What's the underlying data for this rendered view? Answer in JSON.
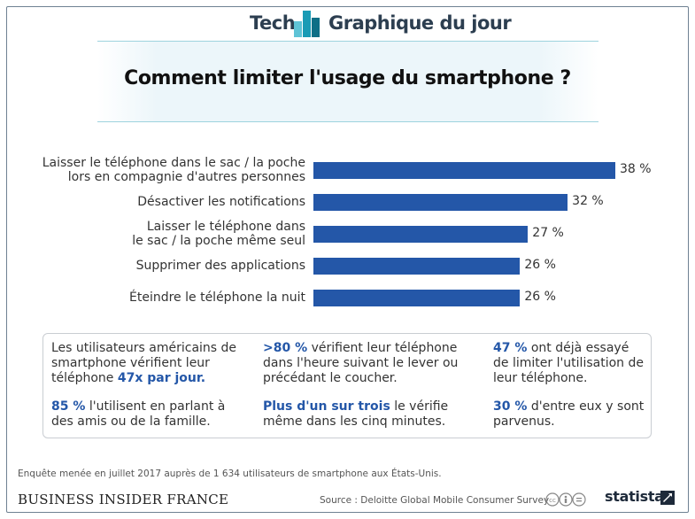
{
  "header": {
    "left_label": "Tech",
    "right_label": "Graphique du jour",
    "logo_icon": "bar-logo-icon",
    "accent_color": "#1a9bb5"
  },
  "title": "Comment limiter l'usage du smartphone ?",
  "chart_data": {
    "type": "bar",
    "orientation": "horizontal",
    "title": "Comment limiter l'usage du smartphone ?",
    "categories": [
      [
        "Laisser le téléphone dans le sac / la poche",
        "lors en compagnie d'autres personnes"
      ],
      [
        "Désactiver les notifications"
      ],
      [
        "Laisser le téléphone dans",
        "le sac / la poche même seul"
      ],
      [
        "Supprimer des applications"
      ],
      [
        "Éteindre le téléphone la nuit"
      ]
    ],
    "values": [
      38,
      32,
      27,
      26,
      26
    ],
    "value_labels": [
      "38 %",
      "32 %",
      "27 %",
      "26 %",
      "26 %"
    ],
    "unit": "%",
    "bar_color": "#2457a8",
    "xlim": [
      0,
      38
    ],
    "grid": false,
    "legend": "none"
  },
  "facts": [
    {
      "segments": [
        {
          "text": "Les utilisateurs américains de smartphone vérifient leur téléphone ",
          "hl": false
        },
        {
          "text": "47x par jour.",
          "hl": true
        }
      ]
    },
    {
      "segments": [
        {
          "text": ">80 %",
          "hl": true
        },
        {
          "text": " vérifient leur téléphone dans l'heure suivant le lever ou précédant le coucher.",
          "hl": false
        }
      ]
    },
    {
      "segments": [
        {
          "text": "47 %",
          "hl": true
        },
        {
          "text": " ont déjà essayé de limiter l'utilisation de leur téléphone.",
          "hl": false
        }
      ]
    },
    {
      "segments": [
        {
          "text": "85 %",
          "hl": true
        },
        {
          "text": " l'utilisent en parlant à des amis ou de la famille.",
          "hl": false
        }
      ]
    },
    {
      "segments": [
        {
          "text": "Plus d'un sur trois",
          "hl": true
        },
        {
          "text": " le vérifie même dans les cinq minutes.",
          "hl": false
        }
      ]
    },
    {
      "segments": [
        {
          "text": "30 %",
          "hl": true
        },
        {
          "text": " d'entre eux y sont parvenus.",
          "hl": false
        }
      ]
    }
  ],
  "footer": {
    "note": "Enquête menée en juillet 2017 auprès de 1 634 utilisateurs de smartphone aux États-Unis.",
    "brand": "BUSINESS INSIDER FRANCE",
    "source": "Source : Deloitte Global Mobile Consumer Survey",
    "license_icon": "creative-commons-icon",
    "statista": "statista",
    "statista_icon": "statista-logo-icon"
  }
}
